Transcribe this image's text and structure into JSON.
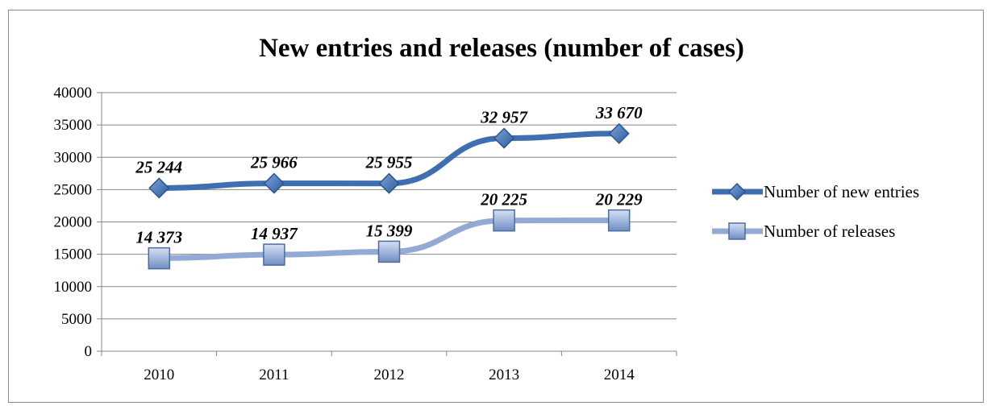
{
  "chart_data": {
    "type": "line",
    "title": "New entries and releases (number of cases)",
    "categories": [
      "2010",
      "2011",
      "2012",
      "2013",
      "2014"
    ],
    "ylim": [
      0,
      40000
    ],
    "yticks": [
      0,
      5000,
      10000,
      15000,
      20000,
      25000,
      30000,
      35000,
      40000
    ],
    "ytick_labels": [
      "0",
      "5000",
      "10000",
      "15000",
      "20000",
      "25000",
      "30000",
      "35000",
      "40000"
    ],
    "grid": true,
    "legend_position": "right",
    "series": [
      {
        "name": "Number of new entries",
        "values": [
          25244,
          25966,
          25955,
          32957,
          33670
        ],
        "data_labels": [
          "25 244",
          "25 966",
          "25 955",
          "32 957",
          "33 670"
        ],
        "color": "#3f6fb0",
        "marker": "diamond"
      },
      {
        "name": "Number of releases",
        "values": [
          14373,
          14937,
          15399,
          20225,
          20229
        ],
        "data_labels": [
          "14 373",
          "14 937",
          "15 399",
          "20 225",
          "20 229"
        ],
        "color": "#93aad4",
        "marker": "square"
      }
    ]
  }
}
